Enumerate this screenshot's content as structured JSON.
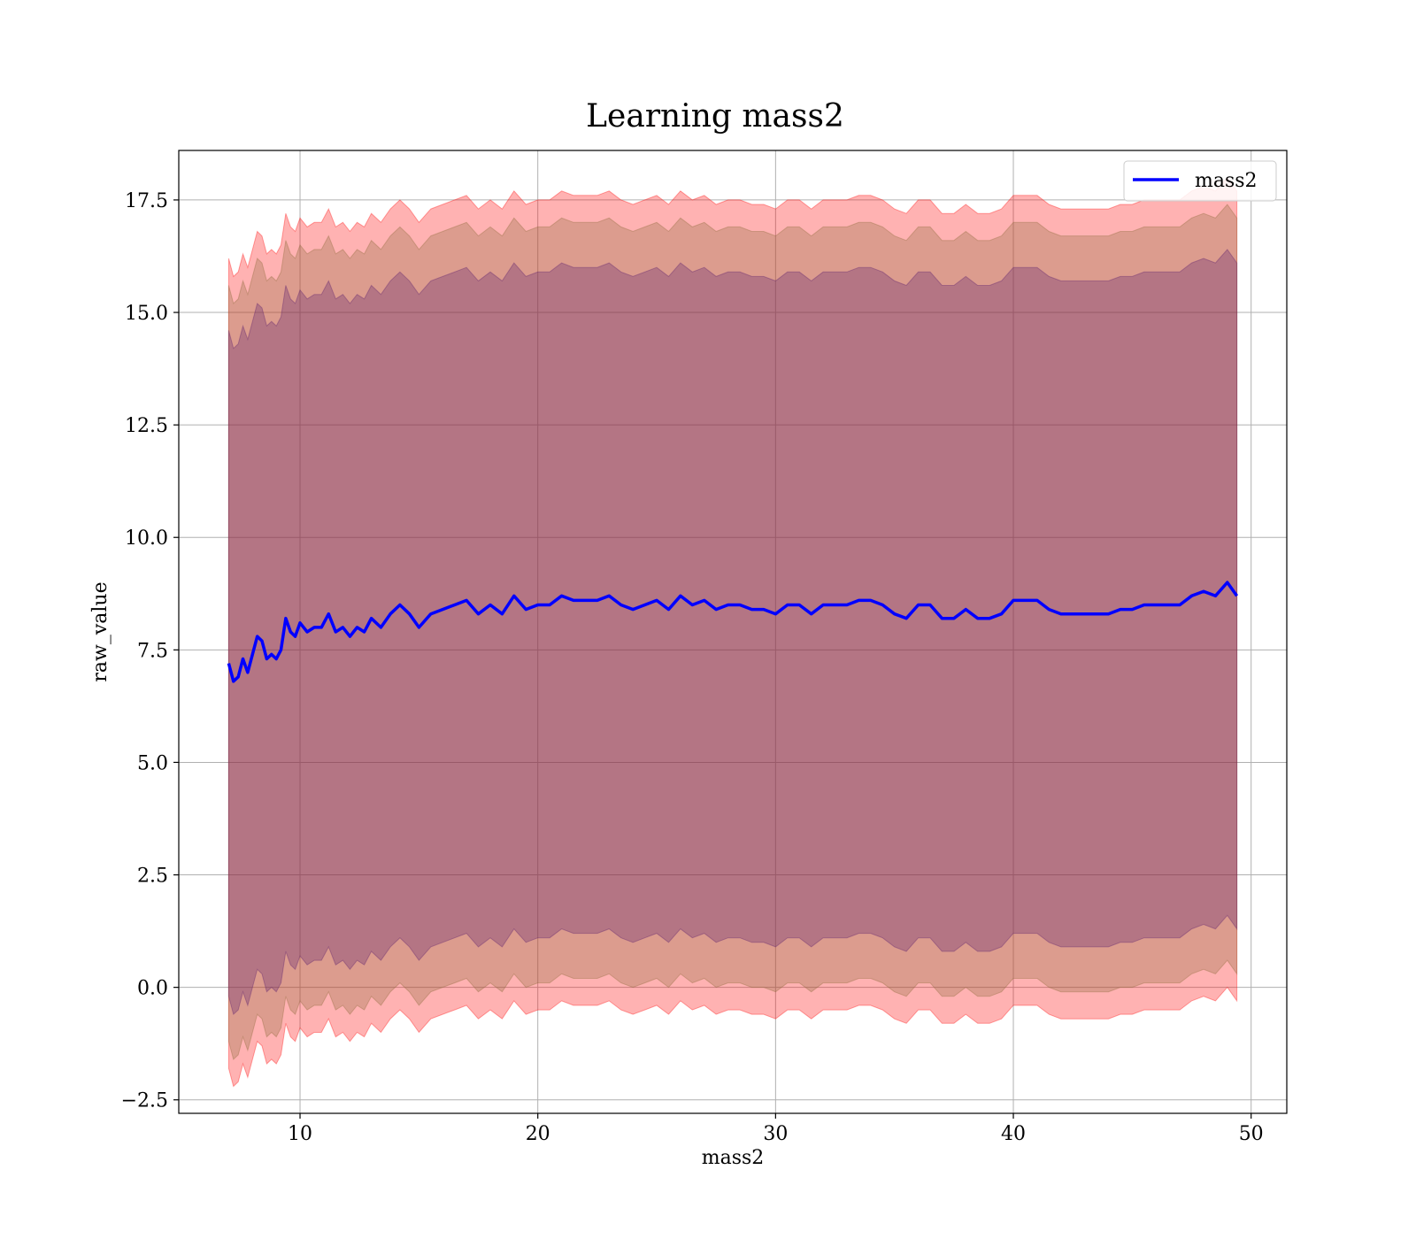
{
  "chart_data": {
    "type": "area",
    "title": "Learning mass2",
    "xlabel": "mass2",
    "ylabel": "raw_value",
    "xlim": [
      4.9,
      51.5
    ],
    "ylim": [
      -2.8,
      18.6
    ],
    "xticks": [
      10,
      20,
      30,
      40,
      50
    ],
    "yticks": [
      -2.5,
      0.0,
      2.5,
      5.0,
      7.5,
      10.0,
      12.5,
      15.0,
      17.5
    ],
    "ytick_labels": [
      "−2.5",
      "0.0",
      "2.5",
      "5.0",
      "7.5",
      "10.0",
      "12.5",
      "15.0",
      "17.5"
    ],
    "grid": true,
    "legend": {
      "placement": "top-right",
      "entries": [
        "mass2"
      ]
    },
    "colors": {
      "line": "#0000ff",
      "band_outer": "#ff0000",
      "band_middle": "#8b6a3a",
      "band_inner": "#5a1c6e",
      "grid": "#b0b0b0"
    },
    "band_alpha": 0.3,
    "band_half_widths": {
      "inner": 7.4,
      "middle": 8.4,
      "outer": 9.0
    },
    "series": [
      {
        "name": "mass2",
        "x": [
          7.0,
          7.2,
          7.4,
          7.6,
          7.8,
          8.0,
          8.2,
          8.4,
          8.6,
          8.8,
          9.0,
          9.2,
          9.4,
          9.6,
          9.8,
          10.0,
          10.3,
          10.6,
          10.9,
          11.2,
          11.5,
          11.8,
          12.1,
          12.4,
          12.7,
          13.0,
          13.4,
          13.8,
          14.2,
          14.6,
          15.0,
          15.5,
          16.0,
          16.5,
          17.0,
          17.5,
          18.0,
          18.5,
          19.0,
          19.5,
          20.0,
          20.5,
          21.0,
          21.5,
          22.0,
          22.5,
          23.0,
          23.5,
          24.0,
          24.5,
          25.0,
          25.5,
          26.0,
          26.5,
          27.0,
          27.5,
          28.0,
          28.5,
          29.0,
          29.5,
          30.0,
          30.5,
          31.0,
          31.5,
          32.0,
          32.5,
          33.0,
          33.5,
          34.0,
          34.5,
          35.0,
          35.5,
          36.0,
          36.5,
          37.0,
          37.5,
          38.0,
          38.5,
          39.0,
          39.5,
          40.0,
          40.5,
          41.0,
          41.5,
          42.0,
          42.5,
          43.0,
          43.5,
          44.0,
          44.5,
          45.0,
          45.5,
          46.0,
          46.5,
          47.0,
          47.5,
          48.0,
          48.5,
          49.0,
          49.4
        ],
        "y": [
          7.2,
          6.8,
          6.9,
          7.3,
          7.0,
          7.4,
          7.8,
          7.7,
          7.3,
          7.4,
          7.3,
          7.5,
          8.2,
          7.9,
          7.8,
          8.1,
          7.9,
          8.0,
          8.0,
          8.3,
          7.9,
          8.0,
          7.8,
          8.0,
          7.9,
          8.2,
          8.0,
          8.3,
          8.5,
          8.3,
          8.0,
          8.3,
          8.4,
          8.5,
          8.6,
          8.3,
          8.5,
          8.3,
          8.7,
          8.4,
          8.5,
          8.5,
          8.7,
          8.6,
          8.6,
          8.6,
          8.7,
          8.5,
          8.4,
          8.5,
          8.6,
          8.4,
          8.7,
          8.5,
          8.6,
          8.4,
          8.5,
          8.5,
          8.4,
          8.4,
          8.3,
          8.5,
          8.5,
          8.3,
          8.5,
          8.5,
          8.5,
          8.6,
          8.6,
          8.5,
          8.3,
          8.2,
          8.5,
          8.5,
          8.2,
          8.2,
          8.4,
          8.2,
          8.2,
          8.3,
          8.6,
          8.6,
          8.6,
          8.4,
          8.3,
          8.3,
          8.3,
          8.3,
          8.3,
          8.4,
          8.4,
          8.5,
          8.5,
          8.5,
          8.5,
          8.7,
          8.8,
          8.7,
          9.0,
          8.7
        ]
      }
    ]
  }
}
